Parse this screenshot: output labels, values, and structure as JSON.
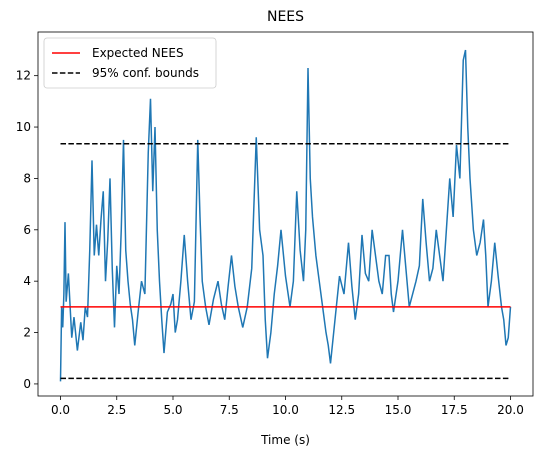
{
  "chart_data": {
    "type": "line",
    "title": "NEES",
    "xlabel": "Time (s)",
    "xlim": [
      -1,
      21
    ],
    "ylim": [
      -0.47,
      13.7
    ],
    "xticks": [
      {
        "value": 0,
        "label": "0.0"
      },
      {
        "value": 2.5,
        "label": "2.5"
      },
      {
        "value": 5,
        "label": "5.0"
      },
      {
        "value": 7.5,
        "label": "7.5"
      },
      {
        "value": 10,
        "label": "10.0"
      },
      {
        "value": 12.5,
        "label": "12.5"
      },
      {
        "value": 15,
        "label": "15.0"
      },
      {
        "value": 17.5,
        "label": "17.5"
      },
      {
        "value": 20,
        "label": "20.0"
      }
    ],
    "yticks": [
      0,
      2,
      4,
      6,
      8,
      10,
      12
    ],
    "legend": "upper left",
    "series": [
      {
        "color": "#1f77b4",
        "dash": "solid",
        "x": [
          0,
          0.05,
          0.1,
          0.15,
          0.2,
          0.25,
          0.35,
          0.5,
          0.6,
          0.75,
          0.9,
          1.0,
          1.1,
          1.2,
          1.3,
          1.4,
          1.5,
          1.6,
          1.7,
          1.8,
          1.9,
          2.0,
          2.1,
          2.2,
          2.3,
          2.4,
          2.5,
          2.6,
          2.7,
          2.8,
          2.9,
          3.0,
          3.1,
          3.2,
          3.3,
          3.45,
          3.6,
          3.75,
          3.9,
          4.0,
          4.1,
          4.2,
          4.3,
          4.4,
          4.5,
          4.6,
          4.75,
          4.9,
          5.0,
          5.1,
          5.2,
          5.35,
          5.5,
          5.65,
          5.8,
          5.95,
          6.1,
          6.2,
          6.3,
          6.45,
          6.6,
          6.8,
          7.0,
          7.15,
          7.3,
          7.45,
          7.6,
          7.75,
          7.9,
          8.1,
          8.3,
          8.5,
          8.7,
          8.85,
          9.0,
          9.1,
          9.2,
          9.35,
          9.5,
          9.65,
          9.8,
          10.0,
          10.2,
          10.35,
          10.5,
          10.65,
          10.8,
          10.9,
          11.0,
          11.1,
          11.2,
          11.35,
          11.5,
          11.65,
          11.8,
          11.9,
          12.0,
          12.2,
          12.4,
          12.6,
          12.8,
          12.95,
          13.1,
          13.25,
          13.4,
          13.55,
          13.7,
          13.85,
          14.0,
          14.15,
          14.3,
          14.45,
          14.6,
          14.7,
          14.8,
          15.0,
          15.2,
          15.35,
          15.5,
          15.65,
          15.8,
          15.95,
          16.1,
          16.25,
          16.4,
          16.55,
          16.7,
          16.85,
          17.0,
          17.15,
          17.3,
          17.45,
          17.6,
          17.75,
          17.9,
          18.0,
          18.1,
          18.2,
          18.35,
          18.5,
          18.65,
          18.8,
          18.9,
          19.0,
          19.15,
          19.3,
          19.45,
          19.6,
          19.7,
          19.8,
          19.9,
          20.0
        ],
        "values": [
          0.1,
          3.0,
          2.2,
          3.5,
          6.3,
          3.2,
          4.3,
          1.8,
          2.6,
          1.3,
          2.4,
          1.7,
          3.0,
          2.6,
          5.2,
          8.7,
          5.0,
          6.2,
          5.0,
          6.4,
          7.5,
          4.0,
          5.6,
          8.0,
          4.5,
          2.2,
          4.6,
          3.5,
          6.0,
          9.5,
          5.2,
          4.0,
          3.1,
          2.5,
          1.5,
          2.8,
          4.0,
          3.5,
          9.0,
          11.1,
          7.5,
          10.0,
          6.0,
          4.0,
          2.5,
          1.2,
          2.8,
          3.1,
          3.5,
          2.0,
          2.5,
          4.0,
          5.8,
          4.0,
          2.5,
          3.2,
          9.5,
          6.5,
          4.0,
          3.0,
          2.3,
          3.3,
          4.0,
          3.1,
          2.5,
          3.8,
          5.0,
          3.8,
          3.0,
          2.2,
          3.0,
          4.5,
          9.6,
          6.0,
          5.0,
          2.5,
          1.0,
          2.0,
          3.5,
          4.6,
          6.0,
          4.2,
          3.0,
          4.0,
          7.5,
          5.2,
          4.0,
          6.0,
          12.3,
          8.0,
          6.5,
          5.0,
          4.0,
          3.0,
          2.0,
          1.5,
          0.8,
          2.5,
          4.2,
          3.5,
          5.5,
          3.8,
          2.5,
          3.5,
          5.8,
          4.3,
          4.0,
          6.0,
          5.0,
          4.0,
          3.5,
          5.0,
          5.0,
          3.5,
          2.8,
          4.0,
          6.0,
          4.5,
          3.0,
          3.5,
          4.0,
          4.6,
          7.2,
          5.5,
          4.0,
          4.5,
          6.0,
          5.0,
          4.0,
          6.0,
          8.0,
          6.5,
          9.3,
          8.0,
          12.6,
          13.0,
          10.0,
          8.0,
          6.0,
          5.0,
          5.5,
          6.4,
          5.0,
          3.0,
          4.0,
          5.5,
          4.2,
          3.0,
          2.5,
          1.5,
          1.8,
          3.0
        ]
      },
      {
        "name": "Expected NEES",
        "color": "#ff0000",
        "dash": "solid",
        "x": [
          0,
          20
        ],
        "values": [
          3,
          3
        ]
      },
      {
        "name": "95% conf. bounds",
        "color": "#000000",
        "dash": "dashed",
        "x": [
          0,
          20
        ],
        "values": [
          9.348,
          9.348
        ]
      },
      {
        "color": "#000000",
        "dash": "dashed",
        "x": [
          0,
          20
        ],
        "values": [
          0.216,
          0.216
        ]
      }
    ]
  }
}
